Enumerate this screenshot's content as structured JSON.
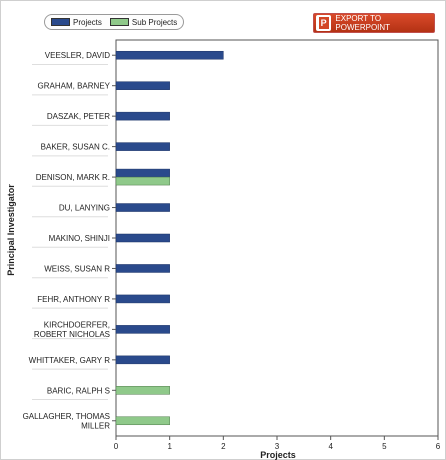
{
  "toolbar": {
    "export_label": "EXPORT TO POWERPOINT"
  },
  "legend": {
    "items": [
      {
        "label": "Projects",
        "color": "#2a4a8c"
      },
      {
        "label": "Sub Projects",
        "color": "#8fc98a"
      }
    ]
  },
  "chart_data": {
    "type": "bar",
    "orientation": "horizontal",
    "categories": [
      [
        "VEESLER, DAVID"
      ],
      [
        "GRAHAM, BARNEY"
      ],
      [
        "DASZAK, PETER"
      ],
      [
        "BAKER, SUSAN C."
      ],
      [
        "DENISON, MARK R."
      ],
      [
        "DU, LANYING"
      ],
      [
        "MAKINO, SHINJI"
      ],
      [
        "WEISS, SUSAN R"
      ],
      [
        "FEHR, ANTHONY R"
      ],
      [
        "KIRCHDOERFER,",
        "ROBERT NICHOLAS"
      ],
      [
        "WHITTAKER, GARY R"
      ],
      [
        "BARIC, RALPH S"
      ],
      [
        "GALLAGHER, THOMAS",
        "MILLER"
      ]
    ],
    "series": [
      {
        "name": "Projects",
        "color": "#2a4a8c",
        "values": [
          2,
          1,
          1,
          1,
          1,
          1,
          1,
          1,
          1,
          1,
          1,
          0,
          0
        ]
      },
      {
        "name": "Sub Projects",
        "color": "#8fc98a",
        "values": [
          0,
          0,
          0,
          0,
          1,
          0,
          0,
          0,
          0,
          0,
          0,
          1,
          1
        ]
      }
    ],
    "xlabel": "Projects",
    "ylabel": "Principal Investigator",
    "xlim": [
      0,
      6
    ],
    "xticks": [
      0,
      1,
      2,
      3,
      4,
      5,
      6
    ],
    "grid": false,
    "legend_position": "top-left"
  }
}
